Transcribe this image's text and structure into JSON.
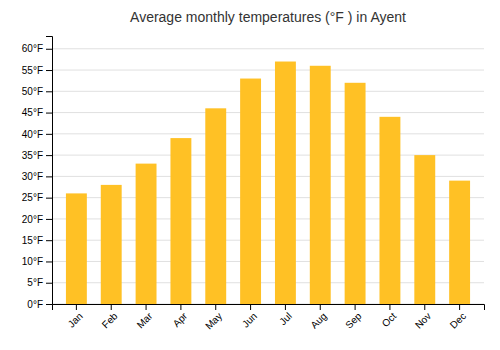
{
  "chart_data": {
    "type": "bar",
    "title": "Average monthly temperatures (°F ) in Ayent",
    "categories": [
      "Jan",
      "Feb",
      "Mar",
      "Apr",
      "May",
      "Jun",
      "Jul",
      "Aug",
      "Sep",
      "Oct",
      "Nov",
      "Dec"
    ],
    "values": [
      26,
      28,
      33,
      39,
      46,
      53,
      57,
      56,
      52,
      44,
      35,
      29
    ],
    "color": "#FFC125",
    "ylim": [
      0,
      63
    ],
    "yticks": [
      {
        "value": 0,
        "label": "0°F"
      },
      {
        "value": 5,
        "label": "5°F"
      },
      {
        "value": 10,
        "label": "10°F"
      },
      {
        "value": 15,
        "label": "15°F"
      },
      {
        "value": 20,
        "label": "20°F"
      },
      {
        "value": 25,
        "label": "25°F"
      },
      {
        "value": 30,
        "label": "30°F"
      },
      {
        "value": 35,
        "label": "35°F"
      },
      {
        "value": 40,
        "label": "40°F"
      },
      {
        "value": 45,
        "label": "45°F"
      },
      {
        "value": 50,
        "label": "50°F"
      },
      {
        "value": 55,
        "label": "55°F"
      },
      {
        "value": 60,
        "label": "60°F"
      }
    ],
    "grid": true
  }
}
